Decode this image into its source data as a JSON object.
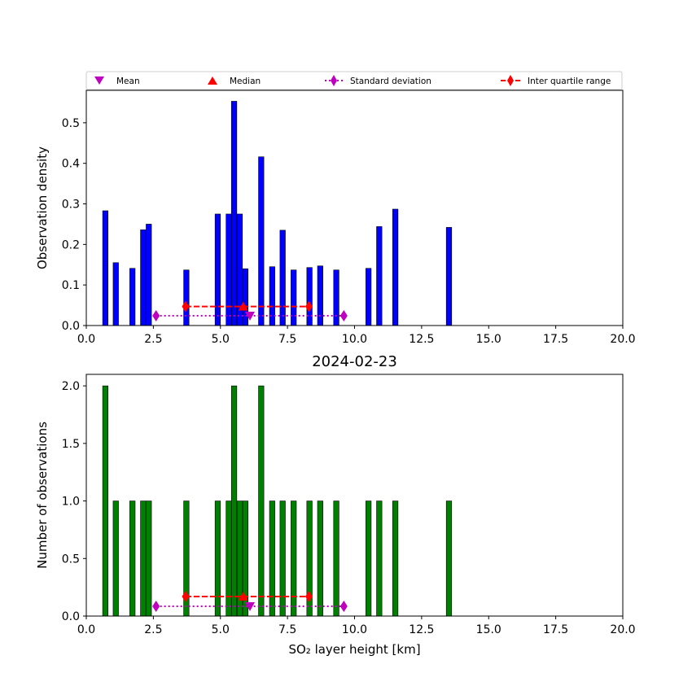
{
  "legend": {
    "items": [
      {
        "label": "Mean",
        "marker": "triangle-down",
        "color": "#bf00bf"
      },
      {
        "label": "Median",
        "marker": "triangle-up",
        "color": "#ff0000"
      },
      {
        "label": "Standard deviation",
        "marker": "diamond-dotted-line",
        "color": "#bf00bf"
      },
      {
        "label": "Inter quartile range",
        "marker": "diamond-dashed-line",
        "color": "#ff0000"
      }
    ]
  },
  "chart_data": [
    {
      "type": "bar",
      "title": "",
      "xlabel": "",
      "ylabel": "Observation density",
      "xlim": [
        0,
        20
      ],
      "ylim": [
        0,
        0.58
      ],
      "xticks": [
        "0.0",
        "2.5",
        "5.0",
        "7.5",
        "10.0",
        "12.5",
        "15.0",
        "17.5",
        "20.0"
      ],
      "xtick_values": [
        0,
        2.5,
        5,
        7.5,
        10,
        12.5,
        15,
        17.5,
        20
      ],
      "yticks": [
        "0.0",
        "0.1",
        "0.2",
        "0.3",
        "0.4",
        "0.5"
      ],
      "ytick_values": [
        0,
        0.1,
        0.2,
        0.3,
        0.4,
        0.5
      ],
      "bar_color": "#0000ff",
      "bars": [
        {
          "x": 0.71,
          "value": 0.283
        },
        {
          "x": 1.1,
          "value": 0.155
        },
        {
          "x": 1.72,
          "value": 0.141
        },
        {
          "x": 2.12,
          "value": 0.236
        },
        {
          "x": 2.33,
          "value": 0.25
        },
        {
          "x": 3.73,
          "value": 0.137
        },
        {
          "x": 4.9,
          "value": 0.275
        },
        {
          "x": 5.31,
          "value": 0.275
        },
        {
          "x": 5.51,
          "value": 0.553
        },
        {
          "x": 5.72,
          "value": 0.275
        },
        {
          "x": 5.93,
          "value": 0.14
        },
        {
          "x": 6.52,
          "value": 0.416
        },
        {
          "x": 6.93,
          "value": 0.145
        },
        {
          "x": 7.32,
          "value": 0.235
        },
        {
          "x": 7.73,
          "value": 0.137
        },
        {
          "x": 8.32,
          "value": 0.143
        },
        {
          "x": 8.72,
          "value": 0.147
        },
        {
          "x": 9.32,
          "value": 0.137
        },
        {
          "x": 10.52,
          "value": 0.141
        },
        {
          "x": 10.92,
          "value": 0.244
        },
        {
          "x": 11.52,
          "value": 0.287
        },
        {
          "x": 13.52,
          "value": 0.242
        }
      ],
      "bar_width": 0.2,
      "stats": {
        "mean": 6.1,
        "median": 5.85,
        "std_range": [
          2.6,
          9.6
        ],
        "iqr_range": [
          3.7,
          8.3
        ],
        "stats_y": 0.024,
        "iqr_y": 0.047
      }
    },
    {
      "type": "bar",
      "title": "2024-02-23",
      "xlabel": "SO₂ layer height [km]",
      "ylabel": "Number of observations",
      "xlim": [
        0,
        20
      ],
      "ylim": [
        0,
        2.1
      ],
      "xticks": [
        "0.0",
        "2.5",
        "5.0",
        "7.5",
        "10.0",
        "12.5",
        "15.0",
        "17.5",
        "20.0"
      ],
      "xtick_values": [
        0,
        2.5,
        5,
        7.5,
        10,
        12.5,
        15,
        17.5,
        20
      ],
      "yticks": [
        "0.0",
        "0.5",
        "1.0",
        "1.5",
        "2.0"
      ],
      "ytick_values": [
        0,
        0.5,
        1.0,
        1.5,
        2.0
      ],
      "bar_color": "#008000",
      "bars": [
        {
          "x": 0.71,
          "value": 2
        },
        {
          "x": 1.1,
          "value": 1
        },
        {
          "x": 1.72,
          "value": 1
        },
        {
          "x": 2.12,
          "value": 1
        },
        {
          "x": 2.33,
          "value": 1
        },
        {
          "x": 3.73,
          "value": 1
        },
        {
          "x": 4.9,
          "value": 1
        },
        {
          "x": 5.31,
          "value": 1
        },
        {
          "x": 5.51,
          "value": 2
        },
        {
          "x": 5.72,
          "value": 1
        },
        {
          "x": 5.93,
          "value": 1
        },
        {
          "x": 6.52,
          "value": 2
        },
        {
          "x": 6.93,
          "value": 1
        },
        {
          "x": 7.32,
          "value": 1
        },
        {
          "x": 7.73,
          "value": 1
        },
        {
          "x": 8.32,
          "value": 1
        },
        {
          "x": 8.72,
          "value": 1
        },
        {
          "x": 9.32,
          "value": 1
        },
        {
          "x": 10.52,
          "value": 1
        },
        {
          "x": 10.92,
          "value": 1
        },
        {
          "x": 11.52,
          "value": 1
        },
        {
          "x": 13.52,
          "value": 1
        }
      ],
      "bar_width": 0.2,
      "stats": {
        "mean": 6.1,
        "median": 5.85,
        "std_range": [
          2.6,
          9.6
        ],
        "iqr_range": [
          3.7,
          8.3
        ],
        "stats_y": 0.085,
        "iqr_y": 0.17
      }
    }
  ]
}
